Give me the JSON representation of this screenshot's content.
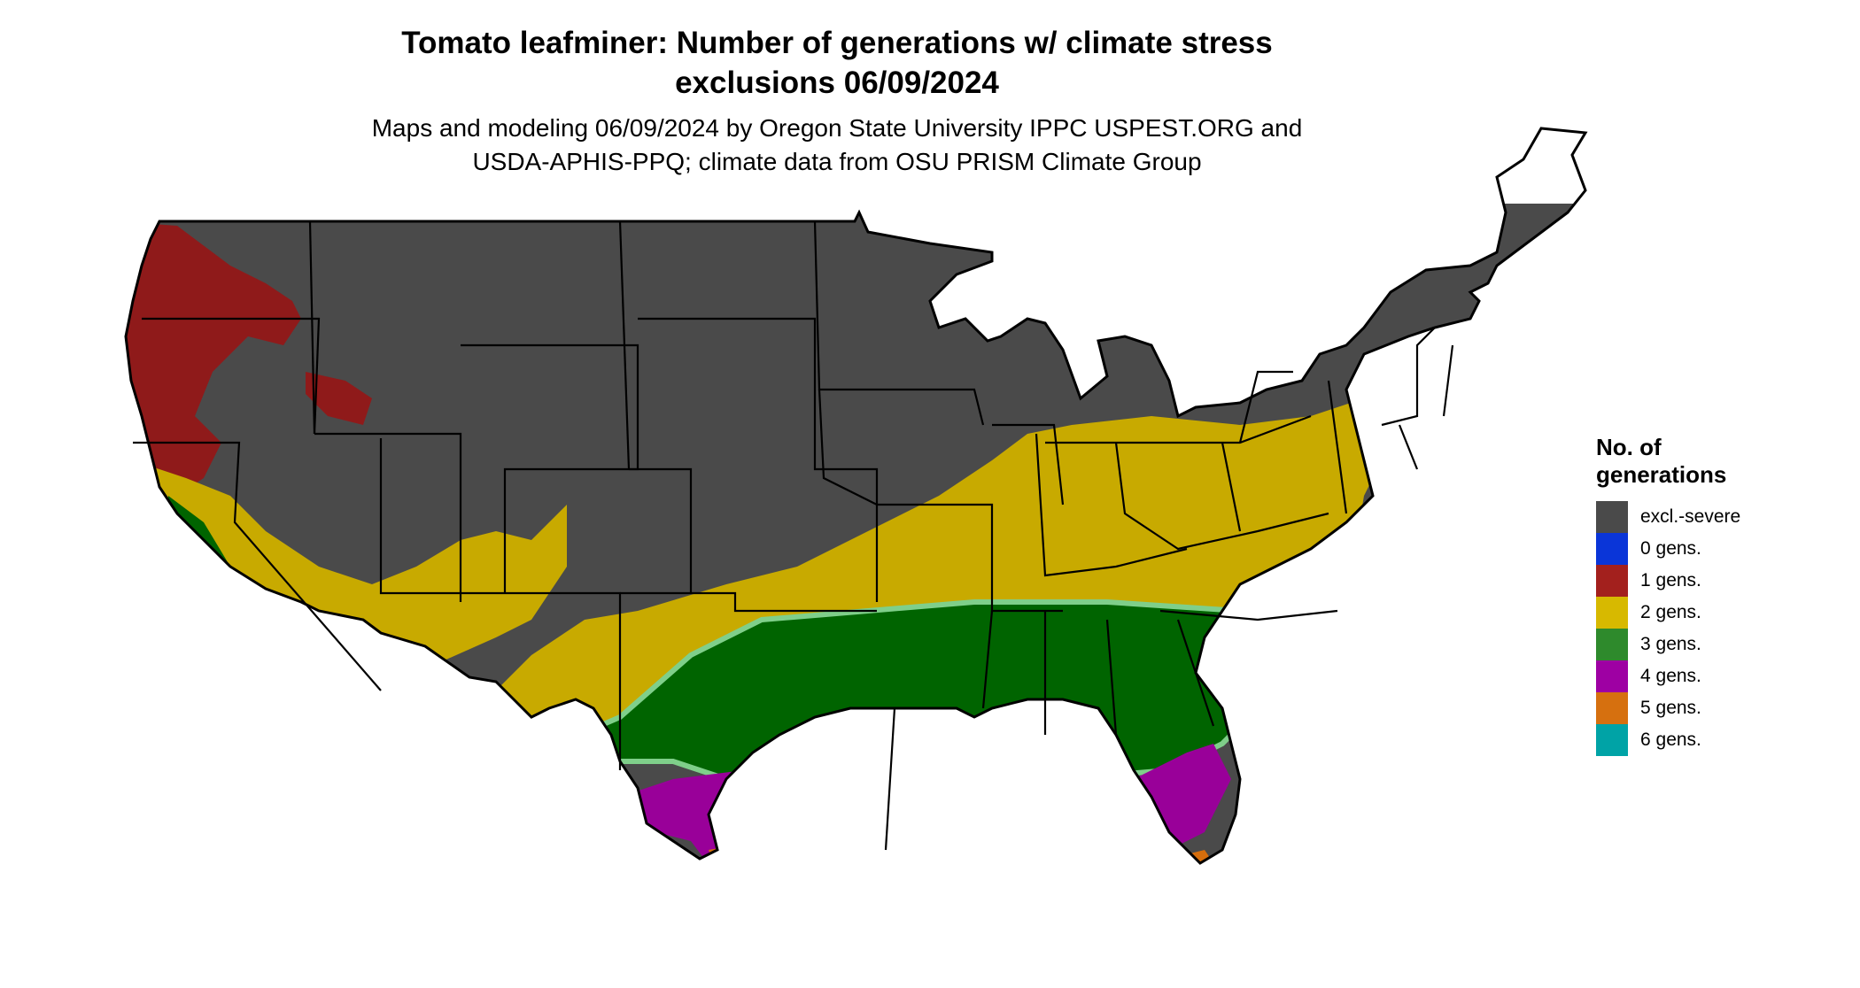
{
  "title_line1": "Tomato leafminer: Number of generations w/ climate stress",
  "title_line2": "exclusions 06/09/2024",
  "subtitle_line1": "Maps and modeling 06/09/2024 by Oregon State University IPPC USPEST.ORG and",
  "subtitle_line2": "USDA-APHIS-PPQ; climate data from OSU PRISM Climate Group",
  "legend": {
    "title_line1": "No. of",
    "title_line2": "generations",
    "items": [
      {
        "label": "excl.-severe",
        "color": "#4a4a4a"
      },
      {
        "label": "0 gens.",
        "color": "#0a35d8"
      },
      {
        "label": "1 gens.",
        "color": "#a3201d"
      },
      {
        "label": "2 gens.",
        "color": "#d7b900"
      },
      {
        "label": "3 gens.",
        "color": "#2e8a2c"
      },
      {
        "label": "4 gens.",
        "color": "#9e00a3"
      },
      {
        "label": "5 gens.",
        "color": "#d6700f"
      },
      {
        "label": "6 gens.",
        "color": "#00a3a6"
      }
    ]
  },
  "map_colors": {
    "excluded": "#4a4a4a",
    "gen1": "#8f1a1a",
    "gen2": "#c8aa00",
    "gen3": "#006400",
    "gen3_edge": "#7fcf8a",
    "gen4": "#990099",
    "gen5": "#d56d0c",
    "gen6": "#12a6a0",
    "border": "#000000"
  }
}
